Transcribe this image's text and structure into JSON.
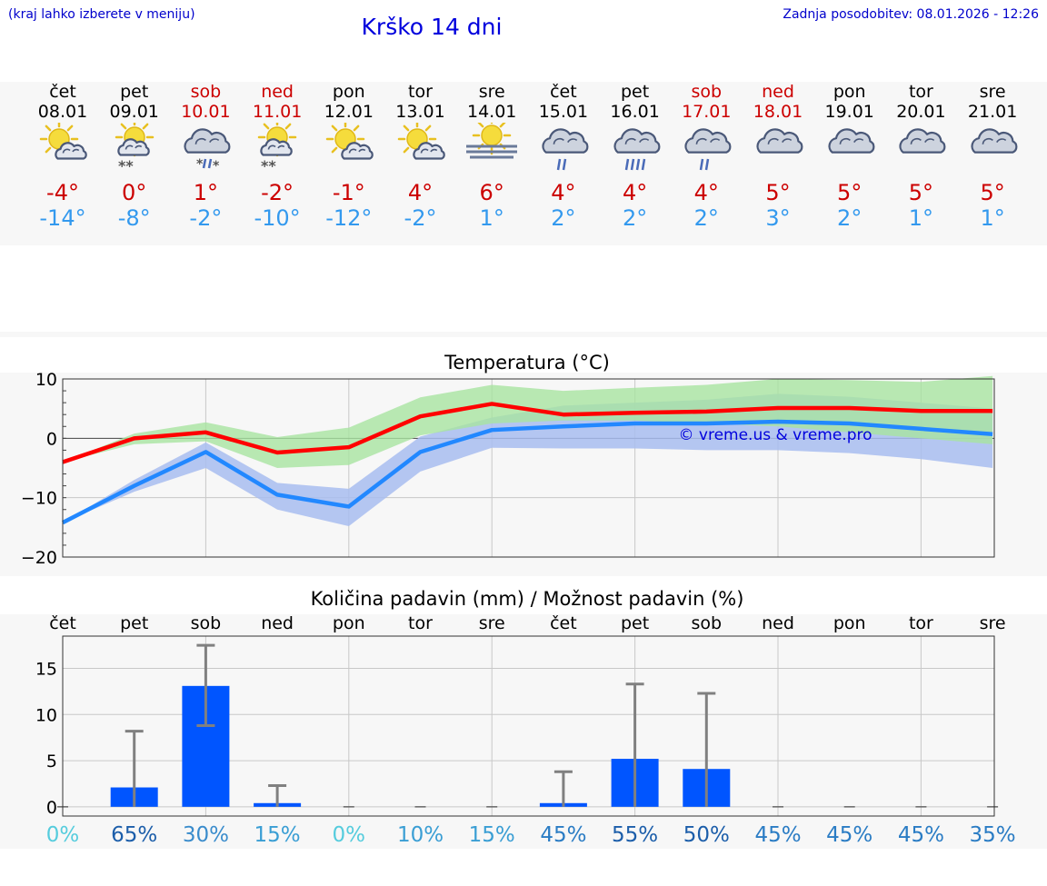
{
  "header": {
    "note": "(kraj lahko izberete v meniju)",
    "title": "Krško 14 dni",
    "last_update": "Zadnja posodobitev: 08.01.2026 - 12:26"
  },
  "colors": {
    "max_temp": "#cc0000",
    "min_temp": "#3399ee",
    "max_line": "#ff0000",
    "min_line": "#2288ff",
    "max_band": "#a8e4a0",
    "min_band": "#a8bdf0",
    "bar": "#0055ff",
    "whisker": "#808080"
  },
  "days": [
    {
      "name": "čet",
      "date": "08.01",
      "icon": "sun-cloud-icon",
      "max": "-4°",
      "min": "-14°",
      "weekend": false
    },
    {
      "name": "pet",
      "date": "09.01",
      "icon": "sun-cloud-snow-icon",
      "max": "0°",
      "min": "-8°",
      "weekend": false
    },
    {
      "name": "sob",
      "date": "10.01",
      "icon": "cloud-sleet-icon",
      "max": "1°",
      "min": "-2°",
      "weekend": true
    },
    {
      "name": "ned",
      "date": "11.01",
      "icon": "sun-cloud-snow-icon",
      "max": "-2°",
      "min": "-10°",
      "weekend": true
    },
    {
      "name": "pon",
      "date": "12.01",
      "icon": "sun-cloud-icon",
      "max": "-1°",
      "min": "-12°",
      "weekend": false
    },
    {
      "name": "tor",
      "date": "13.01",
      "icon": "sun-cloud-icon",
      "max": "4°",
      "min": "-2°",
      "weekend": false
    },
    {
      "name": "sre",
      "date": "14.01",
      "icon": "sun-fog-icon",
      "max": "6°",
      "min": "1°",
      "weekend": false
    },
    {
      "name": "čet",
      "date": "15.01",
      "icon": "cloud-rain-icon",
      "max": "4°",
      "min": "2°",
      "weekend": false
    },
    {
      "name": "pet",
      "date": "16.01",
      "icon": "cloud-heavy-rain-icon",
      "max": "4°",
      "min": "2°",
      "weekend": false
    },
    {
      "name": "sob",
      "date": "17.01",
      "icon": "cloud-rain-icon",
      "max": "4°",
      "min": "2°",
      "weekend": true
    },
    {
      "name": "ned",
      "date": "18.01",
      "icon": "cloud-icon",
      "max": "5°",
      "min": "3°",
      "weekend": true
    },
    {
      "name": "pon",
      "date": "19.01",
      "icon": "cloud-icon",
      "max": "5°",
      "min": "2°",
      "weekend": false
    },
    {
      "name": "tor",
      "date": "20.01",
      "icon": "cloud-icon",
      "max": "5°",
      "min": "1°",
      "weekend": false
    },
    {
      "name": "sre",
      "date": "21.01",
      "icon": "cloud-icon",
      "max": "5°",
      "min": "1°",
      "weekend": false
    }
  ],
  "chart_data": [
    {
      "type": "line",
      "title": "Temperatura (°C)",
      "watermark": "© vreme.us & vreme.pro",
      "ylim": [
        -20,
        10
      ],
      "yticks": [
        10,
        0,
        -10,
        -20
      ],
      "ytick_labels": [
        "10",
        "0",
        "−10",
        "−20"
      ],
      "grid": true,
      "series": [
        {
          "name": "max",
          "values": [
            -4,
            0,
            1,
            -2.4,
            -1.5,
            3.7,
            5.8,
            4,
            4.3,
            4.5,
            5.1,
            5.1,
            4.6,
            4.6
          ],
          "band_low": [
            -4,
            -1,
            -0.5,
            -5,
            -4.5,
            0.5,
            2.5,
            3,
            3,
            2.5,
            2,
            1,
            0,
            -1
          ],
          "band_high": [
            -4,
            0.8,
            2.7,
            0.2,
            1.8,
            6.9,
            9,
            8,
            8.5,
            9,
            10,
            9.8,
            9.5,
            10.5
          ]
        },
        {
          "name": "min",
          "values": [
            -14.2,
            -8,
            -2.3,
            -9.5,
            -11.5,
            -2.3,
            1.4,
            2,
            2.5,
            2.5,
            2.8,
            2.5,
            1.6,
            0.7
          ],
          "band_low": [
            -14.2,
            -9,
            -5,
            -12,
            -14.8,
            -5.6,
            -1.6,
            -1.7,
            -1.7,
            -2,
            -2,
            -2.5,
            -3.5,
            -5
          ],
          "band_high": [
            -14.2,
            -7,
            -0.7,
            -7.5,
            -8.5,
            0.3,
            3.5,
            5.5,
            6,
            6.5,
            7.5,
            7,
            6,
            5
          ]
        }
      ]
    },
    {
      "type": "bar",
      "title": "Količina padavin (mm) / Možnost padavin (%)",
      "categories": [
        "čet",
        "pet",
        "sob",
        "ned",
        "pon",
        "tor",
        "sre",
        "čet",
        "pet",
        "sob",
        "ned",
        "pon",
        "tor",
        "sre"
      ],
      "ylim": [
        -1,
        18.5
      ],
      "yticks": [
        15,
        10,
        5,
        0
      ],
      "ytick_labels": [
        "15",
        "10",
        "5",
        "0"
      ],
      "values": [
        0,
        2.1,
        13.1,
        0.4,
        0,
        0,
        0,
        0.4,
        5.2,
        4.1,
        0,
        0,
        0,
        0
      ],
      "error_high": [
        0,
        8.2,
        17.5,
        2.3,
        0,
        0,
        0,
        3.8,
        13.3,
        12.3,
        0,
        0,
        0,
        0
      ],
      "error_low": [
        0,
        0,
        8.8,
        0,
        0,
        0,
        0,
        0,
        0,
        0,
        0,
        0,
        0,
        0
      ],
      "probability": [
        "0%",
        "65%",
        "30%",
        "15%",
        "0%",
        "10%",
        "15%",
        "45%",
        "55%",
        "50%",
        "45%",
        "45%",
        "45%",
        "35%"
      ],
      "probability_colors": [
        "#55ccdd",
        "#1c5eaa",
        "#3a8ccc",
        "#3a9ed4",
        "#55ccdd",
        "#3a9ed4",
        "#3a9ed4",
        "#2a7cc4",
        "#1c5eaa",
        "#1c5eaa",
        "#2a7cc4",
        "#2a7cc4",
        "#2a7cc4",
        "#2a7cc4"
      ]
    }
  ]
}
